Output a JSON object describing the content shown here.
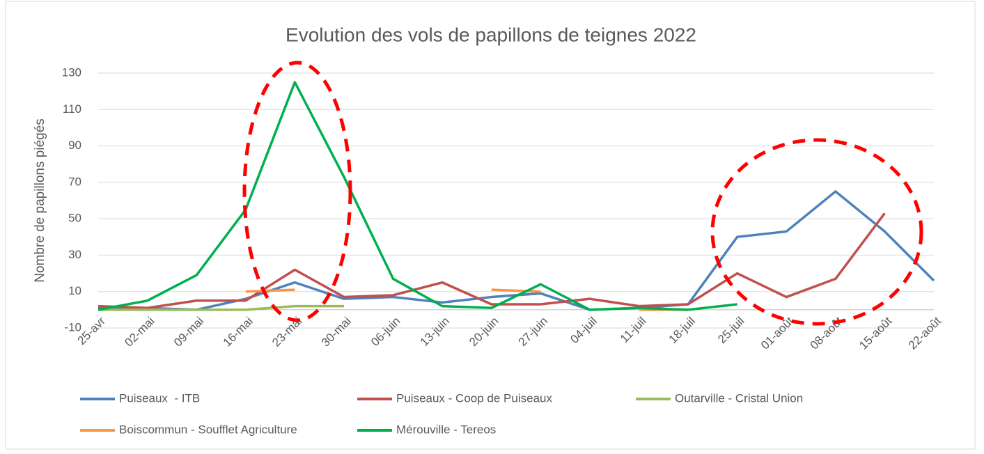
{
  "chart_data": {
    "type": "line",
    "title": "Evolution des vols de papillons de teignes 2022",
    "y_label": "Nombre de papillons piégés",
    "categories": [
      "25-avr",
      "02-mai",
      "09-mai",
      "16-mai",
      "23-mai",
      "30-mai",
      "06-juin",
      "13-juin",
      "20-juin",
      "27-juin",
      "04-juil",
      "11-juil",
      "18-juil",
      "25-juil",
      "01-août",
      "08-août",
      "15-août",
      "22-août"
    ],
    "ylim": [
      -10,
      130
    ],
    "yticks": [
      -10,
      10,
      30,
      50,
      70,
      90,
      110,
      130
    ],
    "grid": true,
    "series": [
      {
        "name": "Puiseaux  - ITB",
        "color": "#4f81bd",
        "values": [
          1,
          1,
          0,
          6,
          15,
          6,
          7,
          4,
          7,
          9,
          0,
          1,
          3,
          40,
          43,
          65,
          43,
          16
        ]
      },
      {
        "name": "Puiseaux - Coop de Puiseaux",
        "color": "#c0504d",
        "values": [
          2,
          1,
          5,
          5,
          22,
          7,
          8,
          15,
          3,
          3,
          6,
          2,
          3,
          20,
          7,
          17,
          53,
          null
        ]
      },
      {
        "name": "Outarville - Cristal Union",
        "color": "#9bbb59",
        "values": [
          0,
          0,
          0,
          0,
          2,
          2,
          null,
          null,
          null,
          null,
          null,
          null,
          null,
          null,
          null,
          null,
          null,
          null
        ]
      },
      {
        "name": "Boiscommun - Soufflet Agriculture",
        "color": "#f79646",
        "values": [
          null,
          null,
          null,
          10,
          11,
          null,
          null,
          null,
          11,
          10,
          null,
          0,
          0,
          null,
          null,
          null,
          null,
          null
        ]
      },
      {
        "name": "Mérouville - Tereos",
        "color": "#00b050",
        "values": [
          0,
          5,
          19,
          55,
          125,
          73,
          17,
          2,
          1,
          14,
          0,
          1,
          0,
          3,
          null,
          null,
          null,
          null
        ]
      }
    ]
  }
}
